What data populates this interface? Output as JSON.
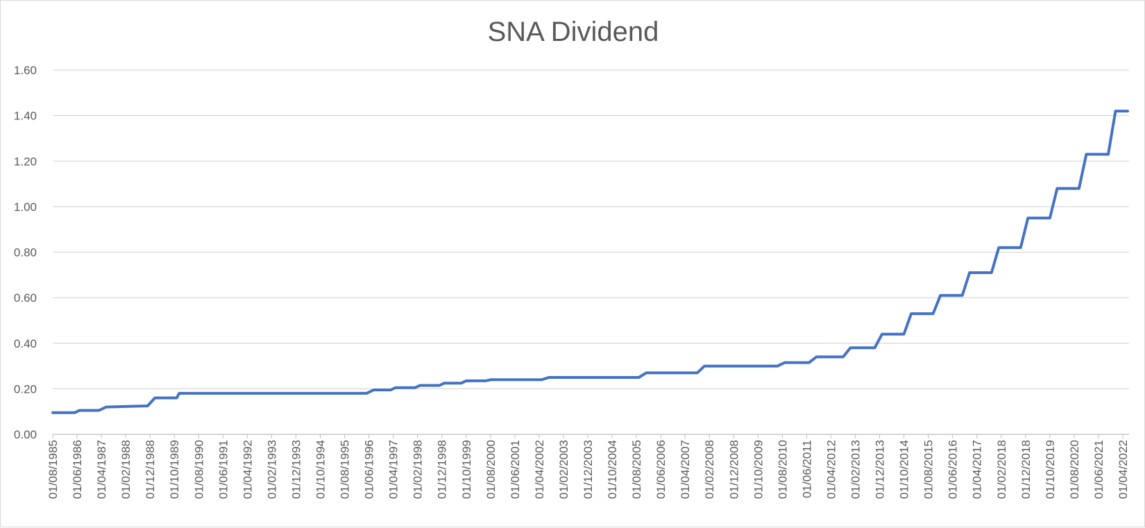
{
  "chart_data": {
    "type": "line",
    "title": "SNA Dividend",
    "xlabel": "",
    "ylabel": "",
    "ylim": [
      0,
      1.6
    ],
    "yticks": [
      "0.00",
      "0.20",
      "0.40",
      "0.60",
      "0.80",
      "1.00",
      "1.20",
      "1.40",
      "1.60"
    ],
    "grid": true,
    "legend": "none",
    "line_color": "#4472c4",
    "x_tick_labels": [
      "01/08/1985",
      "01/06/1986",
      "01/04/1987",
      "01/02/1988",
      "01/12/1988",
      "01/10/1989",
      "01/08/1990",
      "01/06/1991",
      "01/04/1992",
      "01/02/1993",
      "01/12/1993",
      "01/10/1994",
      "01/08/1995",
      "01/06/1996",
      "01/04/1997",
      "01/02/1998",
      "01/12/1998",
      "01/10/1999",
      "01/08/2000",
      "01/06/2001",
      "01/04/2002",
      "01/02/2003",
      "01/12/2003",
      "01/10/2004",
      "01/08/2005",
      "01/06/2006",
      "01/04/2007",
      "01/02/2008",
      "01/12/2008",
      "01/10/2009",
      "01/08/2010",
      "01/06/2011",
      "01/04/2012",
      "01/02/2013",
      "01/12/2013",
      "01/10/2014",
      "01/08/2015",
      "01/06/2016",
      "01/04/2017",
      "01/02/2018",
      "01/12/2018",
      "01/10/2019",
      "01/08/2020",
      "01/06/2021",
      "01/04/2022"
    ],
    "series": [
      {
        "x": [
          "01/08/1985",
          "01/05/1986",
          "01/07/1986",
          "01/03/1987",
          "01/06/1987",
          "01/11/1988",
          "01/02/1989",
          "01/11/1989",
          "01/12/1989",
          "01/05/1996",
          "01/08/1996",
          "01/03/1997",
          "01/05/1997",
          "01/01/1998",
          "01/03/1998",
          "01/11/1998",
          "01/01/1999",
          "01/08/1999",
          "01/10/1999",
          "01/06/2000",
          "01/08/2000",
          "01/05/2002",
          "01/08/2002",
          "01/09/2005",
          "01/12/2005",
          "01/09/2007",
          "01/12/2007",
          "01/06/2010",
          "01/09/2010",
          "01/07/2011",
          "01/10/2011",
          "01/09/2012",
          "01/12/2012",
          "01/10/2013",
          "01/01/2014",
          "01/10/2014",
          "01/01/2015",
          "01/10/2015",
          "01/01/2016",
          "01/10/2016",
          "01/01/2017",
          "01/10/2017",
          "01/01/2018",
          "01/10/2018",
          "01/01/2019",
          "01/10/2019",
          "01/01/2020",
          "01/10/2020",
          "01/01/2021",
          "01/10/2021",
          "01/01/2022",
          "01/08/2022"
        ],
        "values": [
          0.095,
          0.095,
          0.105,
          0.105,
          0.12,
          0.125,
          0.16,
          0.16,
          0.18,
          0.18,
          0.195,
          0.195,
          0.205,
          0.205,
          0.215,
          0.215,
          0.225,
          0.225,
          0.235,
          0.235,
          0.24,
          0.24,
          0.25,
          0.25,
          0.27,
          0.27,
          0.3,
          0.3,
          0.315,
          0.315,
          0.34,
          0.34,
          0.38,
          0.38,
          0.44,
          0.44,
          0.53,
          0.53,
          0.61,
          0.61,
          0.71,
          0.71,
          0.82,
          0.82,
          0.95,
          0.95,
          1.08,
          1.08,
          1.23,
          1.23,
          1.42,
          1.42
        ]
      }
    ]
  }
}
